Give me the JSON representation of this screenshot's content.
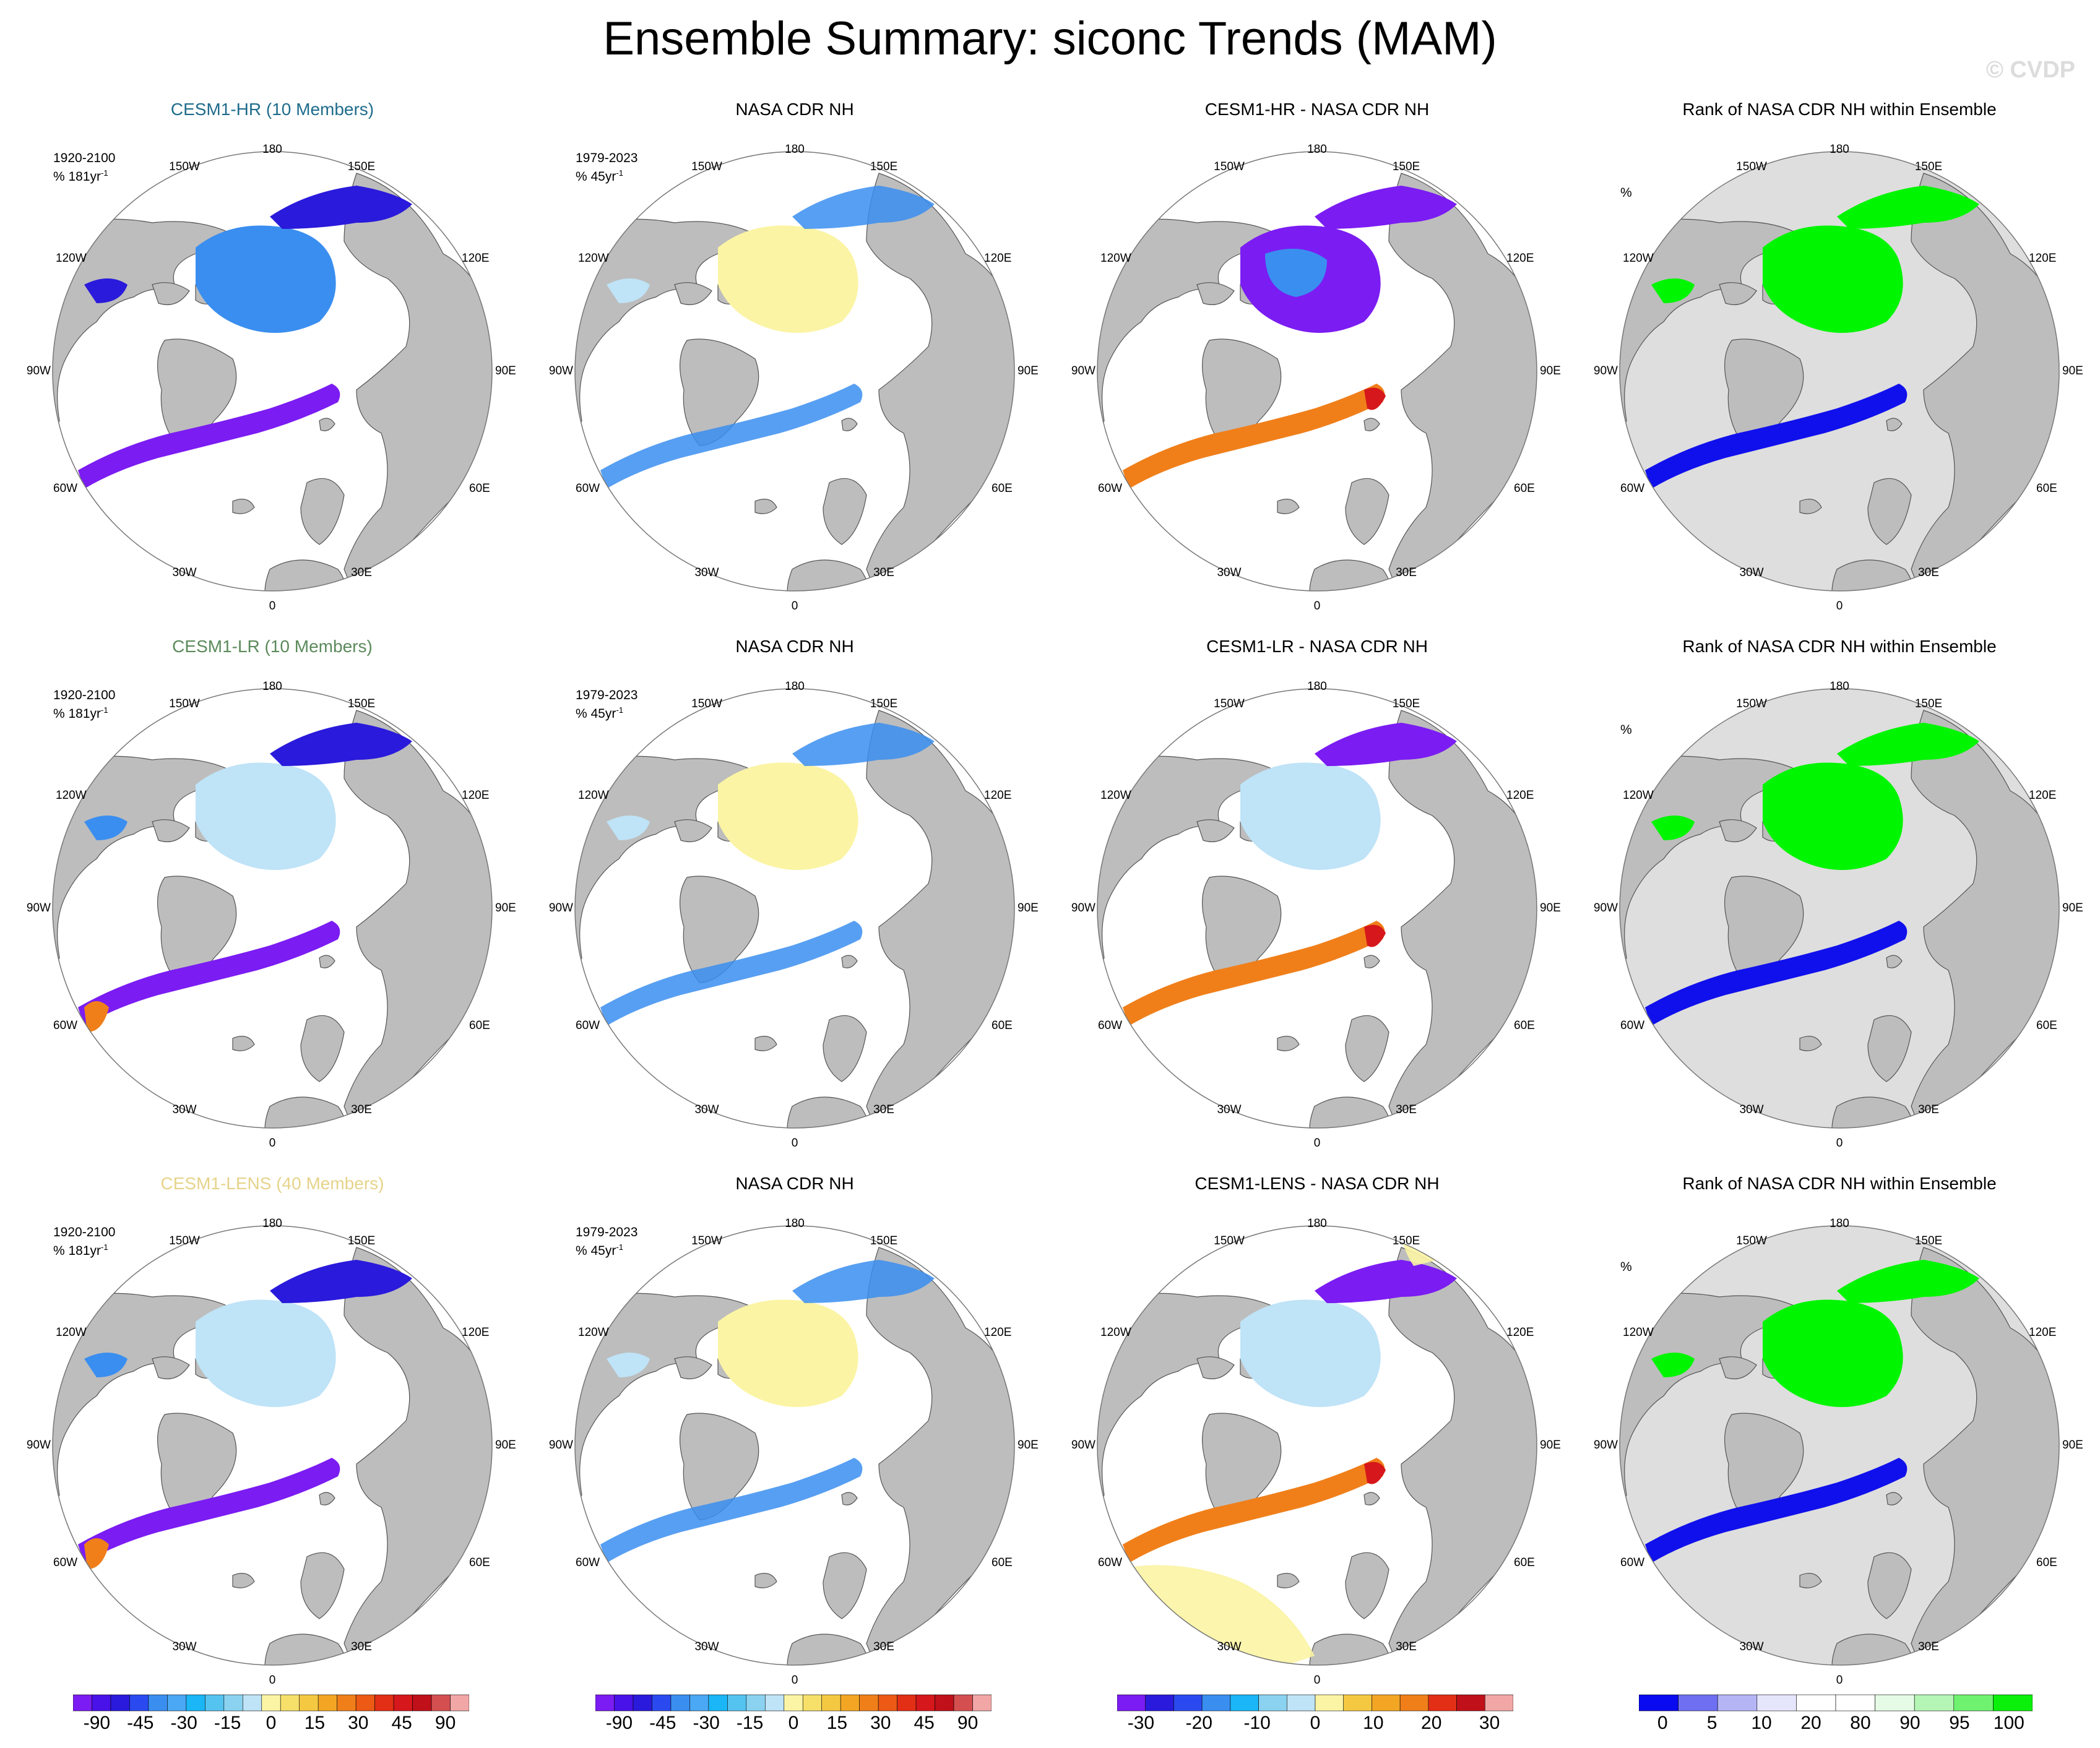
{
  "title": "Ensemble Summary: siconc Trends (MAM)",
  "credit": "© CVDP",
  "lon_labels": {
    "top": "180",
    "bottom": "0",
    "w150": "150W",
    "e150": "150E",
    "w120": "120W",
    "e120": "120E",
    "w90": "90W",
    "e90": "90E",
    "w60": "60W",
    "e60": "60E",
    "w30": "30W",
    "e30": "30E"
  },
  "colors": {
    "land": "#bdbdbd",
    "coast": "#555555",
    "ice_neg_strong": "#7b1cf2",
    "ice_neg_dark": "#2a1adb",
    "ice_neg_mid": "#3a8ef0",
    "ice_neg_light": "#bfe3f7",
    "ice_pos_light": "#fbf4a4",
    "ice_pos_orange": "#f07f1a",
    "ice_pos_red": "#d6171b",
    "rank_green": "#00f500",
    "rank_blue": "#1010ec",
    "rank_grey": "#dedede"
  },
  "rows": [
    {
      "model": {
        "title": "CESM1-HR (10 Members)",
        "title_color": "#1f6c8c",
        "note_line1": "1920-2100",
        "note_line2": "% 181yr",
        "note_sup": "-1"
      },
      "obs": {
        "title": "NASA CDR NH",
        "note_line1": "1979-2023",
        "note_line2": "% 45yr",
        "note_sup": "-1"
      },
      "diff": {
        "title": "CESM1-HR - NASA CDR NH"
      },
      "rank": {
        "title": "Rank of NASA CDR NH within Ensemble",
        "unit": "%"
      }
    },
    {
      "model": {
        "title": "CESM1-LR (10 Members)",
        "title_color": "#5b8a5b",
        "note_line1": "1920-2100",
        "note_line2": "% 181yr",
        "note_sup": "-1"
      },
      "obs": {
        "title": "NASA CDR NH",
        "note_line1": "1979-2023",
        "note_line2": "% 45yr",
        "note_sup": "-1"
      },
      "diff": {
        "title": "CESM1-LR - NASA CDR NH"
      },
      "rank": {
        "title": "Rank of NASA CDR NH within Ensemble",
        "unit": "%"
      }
    },
    {
      "model": {
        "title": "CESM1-LENS (40 Members)",
        "title_color": "#e6d38a",
        "note_line1": "1920-2100",
        "note_line2": "% 181yr",
        "note_sup": "-1"
      },
      "obs": {
        "title": "NASA CDR NH",
        "note_line1": "1979-2023",
        "note_line2": "% 45yr",
        "note_sup": "-1"
      },
      "diff": {
        "title": "CESM1-LENS - NASA CDR NH"
      },
      "rank": {
        "title": "Rank of NASA CDR NH within Ensemble",
        "unit": "%"
      }
    }
  ],
  "colorbars": [
    {
      "name": "trend-colorbar-model",
      "colors": [
        "#7b1cf2",
        "#4812e8",
        "#2a1adb",
        "#2a4af0",
        "#3a8ef0",
        "#4aa8f5",
        "#1ab6f5",
        "#55c3f0",
        "#8ad2f0",
        "#bfe3f7",
        "#fbf4a4",
        "#f6e06a",
        "#f5c842",
        "#f3a624",
        "#f07f1a",
        "#ec5a15",
        "#e32f15",
        "#d6171b",
        "#c0101a",
        "#d45050",
        "#f2a7a7"
      ],
      "labels": [
        "-90",
        "-45",
        "-30",
        "-15",
        "0",
        "15",
        "30",
        "45",
        "90"
      ]
    },
    {
      "name": "trend-colorbar-obs",
      "colors": [
        "#7b1cf2",
        "#4812e8",
        "#2a1adb",
        "#2a4af0",
        "#3a8ef0",
        "#4aa8f5",
        "#1ab6f5",
        "#55c3f0",
        "#8ad2f0",
        "#bfe3f7",
        "#fbf4a4",
        "#f6e06a",
        "#f5c842",
        "#f3a624",
        "#f07f1a",
        "#ec5a15",
        "#e32f15",
        "#d6171b",
        "#c0101a",
        "#d45050",
        "#f2a7a7"
      ],
      "labels": [
        "-90",
        "-45",
        "-30",
        "-15",
        "0",
        "15",
        "30",
        "45",
        "90"
      ]
    },
    {
      "name": "difference-colorbar",
      "colors": [
        "#7b1cf2",
        "#2a1adb",
        "#2a4af0",
        "#3a8ef0",
        "#1ab6f5",
        "#8ad2f0",
        "#bfe3f7",
        "#fbf4a4",
        "#f5c842",
        "#f3a624",
        "#f07f1a",
        "#e32f15",
        "#c0101a",
        "#f2a7a7"
      ],
      "labels": [
        "-30",
        "-20",
        "-10",
        "0",
        "10",
        "20",
        "30"
      ]
    },
    {
      "name": "rank-colorbar",
      "colors": [
        "#0a0af0",
        "#6f6ff2",
        "#b5b5f5",
        "#e5e5fb",
        "#ffffff",
        "#ffffff",
        "#e5fbe5",
        "#b5f5b5",
        "#6ff26f",
        "#0af00a"
      ],
      "labels": [
        "0",
        "5",
        "10",
        "20",
        "80",
        "90",
        "95",
        "100"
      ]
    }
  ]
}
